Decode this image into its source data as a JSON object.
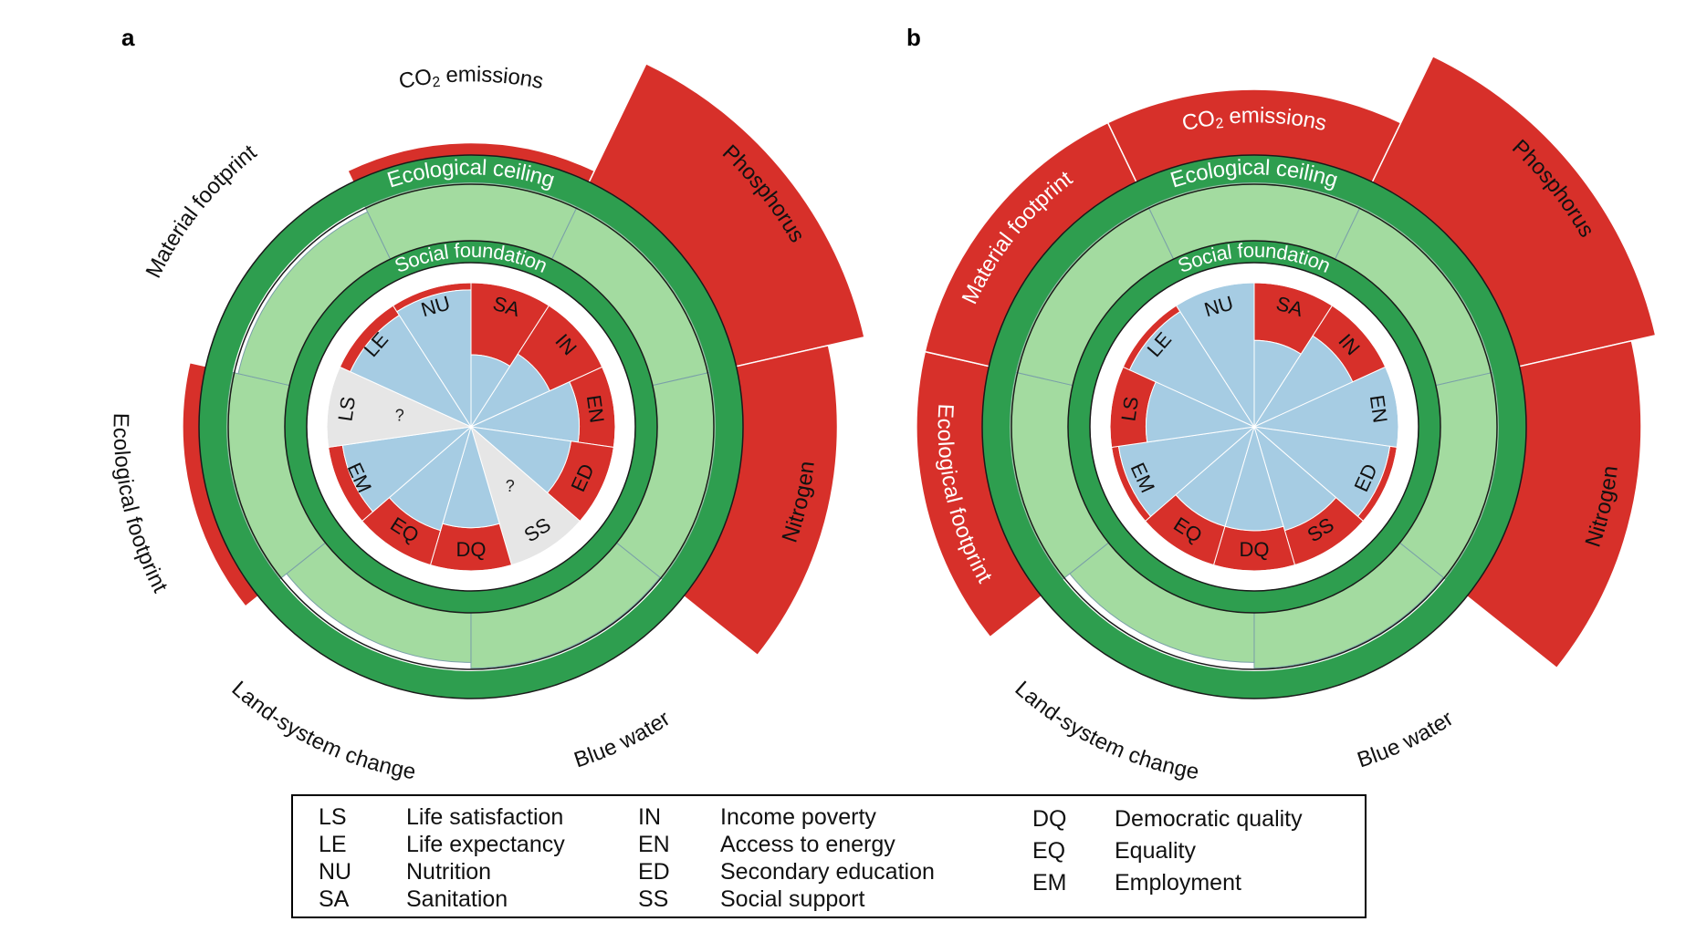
{
  "colors": {
    "ceiling_ring": "#2e9e4f",
    "ecological_fill": "#a3dba0",
    "overshoot": "#d7302a",
    "social_fill": "#a6cce3",
    "unknown_fill": "#e6e6e6",
    "white": "#ffffff"
  },
  "panels": [
    {
      "letter": "a",
      "ceiling_label": "Ecological ceiling",
      "foundation_label": "Social foundation",
      "ecological": [
        {
          "name_main": "CO",
          "name_sub": "2",
          "name_rest": " emissions",
          "value": 1.15
        },
        {
          "name_main": "Phosphorus",
          "value": 2.6
        },
        {
          "name_main": "Nitrogen",
          "value": 2.15
        },
        {
          "name_main": "Blue water",
          "value": 0.95
        },
        {
          "name_main": "Land-system change",
          "value": 0.85
        },
        {
          "name_main": "Ecological footprint",
          "value": 1.2
        },
        {
          "name_main": "Material footprint",
          "value": 0.9
        }
      ],
      "social": [
        {
          "code": "SA",
          "value": 0.5
        },
        {
          "code": "IN",
          "value": 0.6
        },
        {
          "code": "EN",
          "value": 0.75
        },
        {
          "code": "ED",
          "value": 0.7
        },
        {
          "code": "SS",
          "value": null,
          "missing": "?"
        },
        {
          "code": "DQ",
          "value": 0.7
        },
        {
          "code": "EQ",
          "value": 0.75
        },
        {
          "code": "EM",
          "value": 0.9
        },
        {
          "code": "LS",
          "value": null,
          "missing": "?"
        },
        {
          "code": "LE",
          "value": 0.92
        },
        {
          "code": "NU",
          "value": 0.95
        }
      ]
    },
    {
      "letter": "b",
      "ceiling_label": "Ecological ceiling",
      "foundation_label": "Social foundation",
      "ecological": [
        {
          "name_main": "CO",
          "name_sub": "2",
          "name_rest": " emissions",
          "value": 1.8
        },
        {
          "name_main": "Phosphorus",
          "value": 2.7
        },
        {
          "name_main": "Nitrogen",
          "value": 2.4
        },
        {
          "name_main": "Blue water",
          "value": 0.95
        },
        {
          "name_main": "Land-system change",
          "value": 0.85
        },
        {
          "name_main": "Ecological footprint",
          "value": 1.8
        },
        {
          "name_main": "Material footprint",
          "value": 1.8
        }
      ],
      "social": [
        {
          "code": "SA",
          "value": 0.6
        },
        {
          "code": "IN",
          "value": 0.75
        },
        {
          "code": "EN",
          "value": 1.0
        },
        {
          "code": "ED",
          "value": 0.95
        },
        {
          "code": "SS",
          "value": 0.75
        },
        {
          "code": "DQ",
          "value": 0.72
        },
        {
          "code": "EQ",
          "value": 0.72
        },
        {
          "code": "EM",
          "value": 0.95
        },
        {
          "code": "LS",
          "value": 0.75
        },
        {
          "code": "LE",
          "value": 0.95
        },
        {
          "code": "NU",
          "value": 1.0
        }
      ]
    }
  ],
  "legend": [
    [
      {
        "abbr": "LS",
        "name": "Life satisfaction"
      },
      {
        "abbr": "LE",
        "name": "Life expectancy"
      },
      {
        "abbr": "NU",
        "name": "Nutrition"
      },
      {
        "abbr": "SA",
        "name": "Sanitation"
      }
    ],
    [
      {
        "abbr": "IN",
        "name": "Income poverty"
      },
      {
        "abbr": "EN",
        "name": "Access to energy"
      },
      {
        "abbr": "ED",
        "name": "Secondary education"
      },
      {
        "abbr": "SS",
        "name": "Social support"
      }
    ],
    [
      {
        "abbr": "DQ",
        "name": "Democratic quality"
      },
      {
        "abbr": "EQ",
        "name": "Equality"
      },
      {
        "abbr": "EM",
        "name": "Employment"
      }
    ]
  ]
}
